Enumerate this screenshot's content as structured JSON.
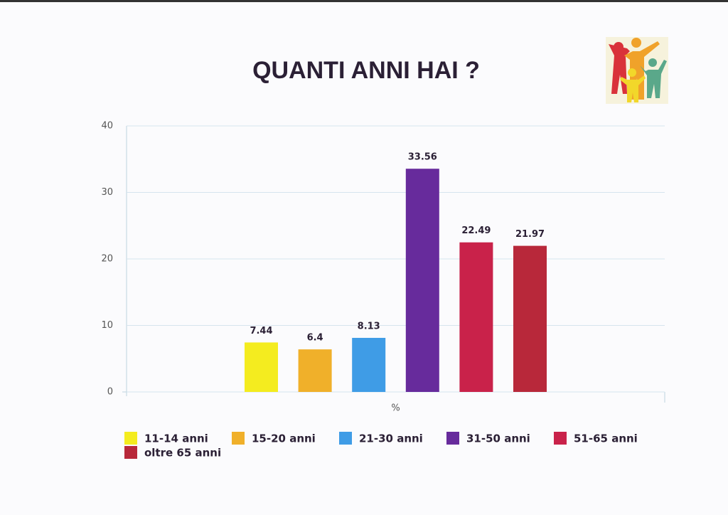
{
  "chart_data": {
    "type": "bar",
    "title": "QUANTI ANNI HAI ?",
    "categories": [
      "%"
    ],
    "series": [
      {
        "name": "11-14 anni",
        "color": "#f4ec1f",
        "values": [
          7.44
        ]
      },
      {
        "name": "15-20 anni",
        "color": "#f0b02a",
        "values": [
          6.4
        ]
      },
      {
        "name": "21-30 anni",
        "color": "#3f9ce6",
        "values": [
          8.13
        ]
      },
      {
        "name": "31-50 anni",
        "color": "#672b9c",
        "values": [
          33.56
        ]
      },
      {
        "name": "51-65 anni",
        "color": "#c9224a",
        "values": [
          22.49
        ]
      },
      {
        "name": "oltre 65 anni",
        "color": "#b8283a",
        "values": [
          21.97
        ]
      }
    ],
    "ylim": [
      0,
      40
    ],
    "yticks": [
      0,
      10,
      20,
      30,
      40
    ],
    "grid": true
  }
}
